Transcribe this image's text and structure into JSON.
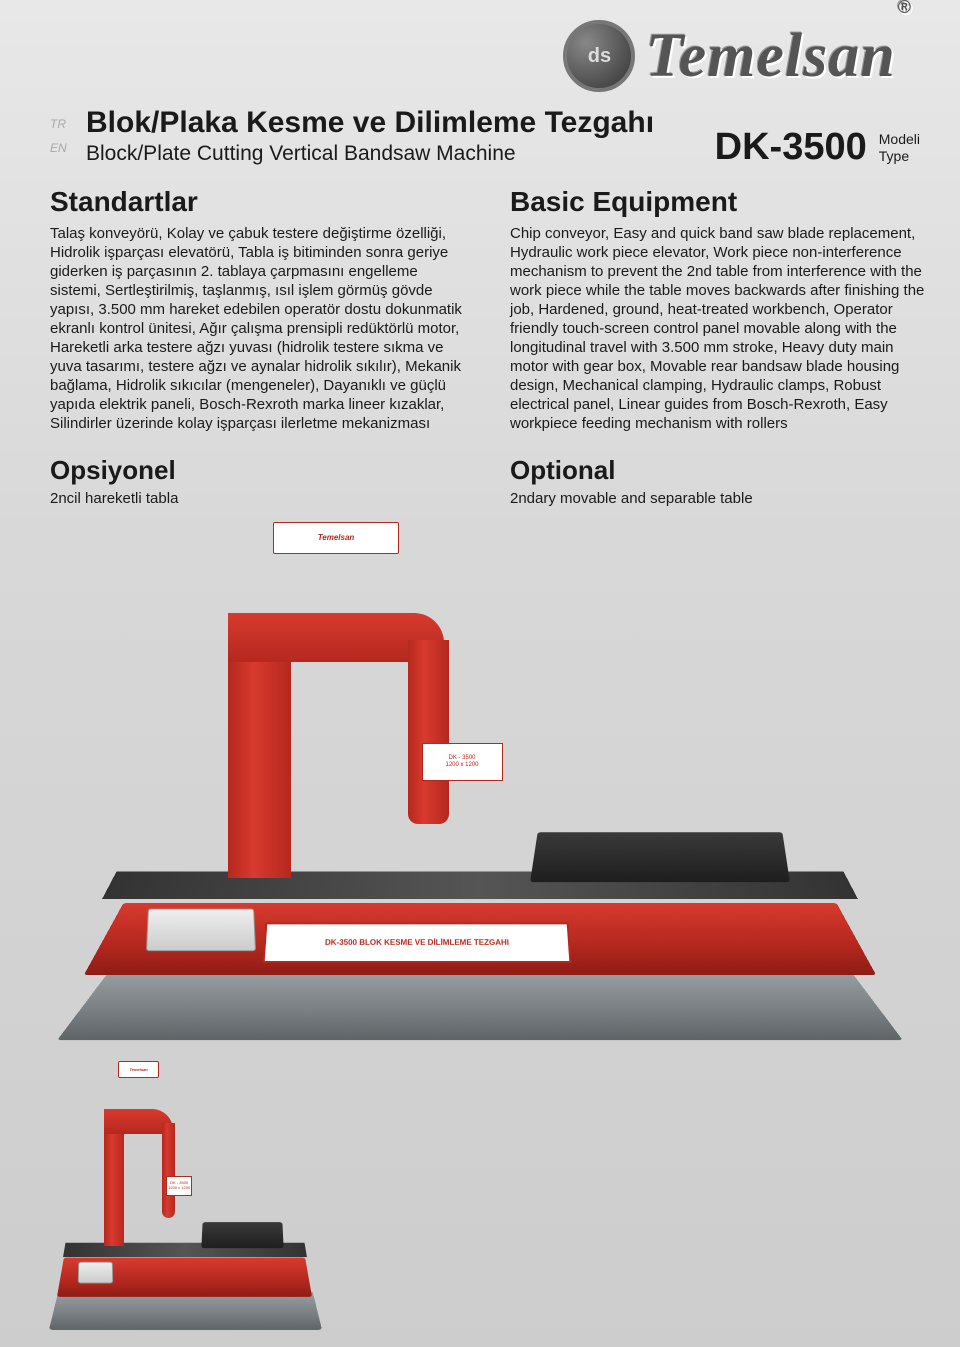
{
  "brand": {
    "name": "Temelsan",
    "badge_letters": "ds",
    "registered": "®"
  },
  "header": {
    "lang_tr": "TR",
    "lang_en": "EN",
    "title_tr": "Blok/Plaka Kesme ve Dilimleme Tezgahı",
    "title_en": "Block/Plate Cutting Vertical Bandsaw Machine",
    "model_code": "DK-3500",
    "model_label_tr": "Modeli",
    "model_label_en": "Type"
  },
  "left": {
    "section_title": "Standartlar",
    "section_body": "Talaş konveyörü, Kolay ve çabuk testere değiştirme özelliği, Hidrolik işparçası elevatörü, Tabla iş bitiminden sonra geriye giderken iş parçasının 2. tablaya çarpmasını engelleme sistemi, Sertleştirilmiş, taşlanmış, ısıl işlem görmüş gövde yapısı, 3.500 mm hareket edebilen operatör dostu dokunmatik ekranlı kontrol ünitesi, Ağır çalışma prensipli redüktörlü motor, Hareketli arka testere ağzı yuvası (hidrolik testere sıkma ve yuva tasarımı, testere ağzı ve aynalar hidrolik sıkılır), Mekanik bağlama, Hidrolik sıkıcılar (mengeneler), Dayanıklı ve güçlü yapıda elektrik paneli, Bosch-Rexroth marka lineer kızaklar, Silindirler üzerinde kolay işparçası ilerletme mekanizması",
    "sub_title": "Opsiyonel",
    "sub_body": "2ncil hareketli tabla"
  },
  "right": {
    "section_title": "Basic Equipment",
    "section_body": "Chip conveyor, Easy and quick band saw blade replacement, Hydraulic work piece elevator, Work piece non-interference mechanism to prevent the 2nd table from interference with the work piece while the table moves backwards after finishing the job, Hardened, ground, heat-treated workbench, Operator friendly touch-screen control panel movable along with the longitudinal travel with 3.500 mm stroke, Heavy duty main motor with gear box, Movable rear bandsaw blade housing design, Mechanical clamping, Hydraulic clamps, Robust electrical panel, Linear guides from Bosch-Rexroth, Easy workpiece feeding mechanism with rollers",
    "sub_title": "Optional",
    "sub_body": "2ndary movable and separable table"
  },
  "machine": {
    "plate_text": "DK-3500 BLOK KESME VE DİLİMLEME TEZGAHI",
    "small_badge_line1": "DK - 3500",
    "small_badge_line2": "1200 x 1200",
    "brand_small": "Temelsan"
  },
  "colors": {
    "machine_red": "#d83a2e",
    "machine_red_dark": "#b5281e",
    "base_grey": "#7a8083",
    "text": "#1a1a1a",
    "bg_top": "#e8e8e8",
    "bg_bottom": "#cdcdcd"
  }
}
